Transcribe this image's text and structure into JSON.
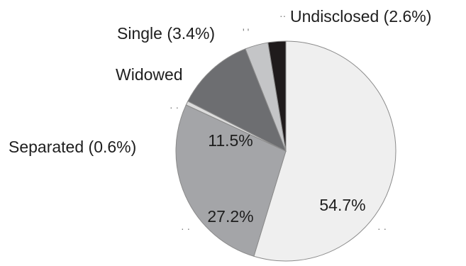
{
  "chart_data": {
    "type": "pie",
    "slices": [
      {
        "label": "",
        "value": 54.7,
        "value_label": "54.7%",
        "color": "#efefef"
      },
      {
        "label": "",
        "value": 27.2,
        "value_label": "27.2%",
        "color": "#a4a5a8"
      },
      {
        "label": "Separated (0.6%)",
        "value": 0.6,
        "value_label": "",
        "color": "#dcdcdc"
      },
      {
        "label": "Widowed",
        "value": 11.5,
        "value_label": "11.5%",
        "color": "#6d6e71"
      },
      {
        "label": "Single (3.4%)",
        "value": 3.4,
        "value_label": "",
        "color": "#c4c5c7"
      },
      {
        "label": "Undisclosed (2.6%)",
        "value": 2.6,
        "value_label": "",
        "color": "#1f1b1c"
      }
    ]
  }
}
